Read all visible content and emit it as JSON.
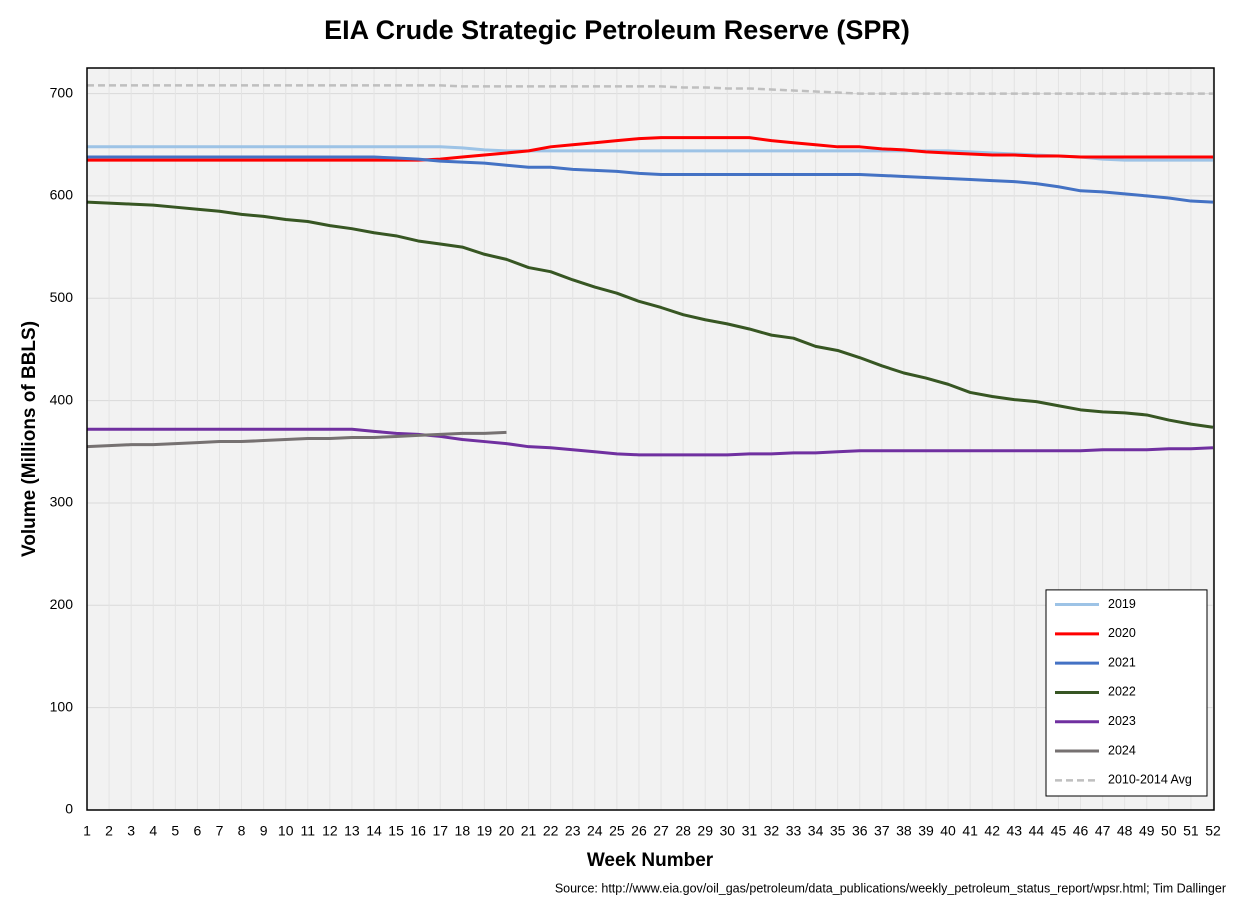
{
  "chart_data": {
    "type": "line",
    "title": "EIA Crude Strategic Petroleum Reserve (SPR)",
    "x_label": "Week Number",
    "y_label": "Volume (Millions of BBLS)",
    "source": "Source: http://www.eia.gov/oil_gas/petroleum/data_publications/weekly_petroleum_status_report/wpsr.html; Tim Dallinger",
    "x": [
      1,
      2,
      3,
      4,
      5,
      6,
      7,
      8,
      9,
      10,
      11,
      12,
      13,
      14,
      15,
      16,
      17,
      18,
      19,
      20,
      21,
      22,
      23,
      24,
      25,
      26,
      27,
      28,
      29,
      30,
      31,
      32,
      33,
      34,
      35,
      36,
      37,
      38,
      39,
      40,
      41,
      42,
      43,
      44,
      45,
      46,
      47,
      48,
      49,
      50,
      51,
      52
    ],
    "xlim": [
      1,
      52
    ],
    "xticks": [
      1,
      2,
      3,
      4,
      5,
      6,
      7,
      8,
      9,
      10,
      11,
      12,
      13,
      14,
      15,
      16,
      17,
      18,
      19,
      20,
      21,
      22,
      23,
      24,
      25,
      26,
      27,
      28,
      29,
      30,
      31,
      32,
      33,
      34,
      35,
      36,
      37,
      38,
      39,
      40,
      41,
      42,
      43,
      44,
      45,
      46,
      47,
      48,
      49,
      50,
      51,
      52
    ],
    "ylim": [
      0,
      725
    ],
    "yticks": [
      0,
      100,
      200,
      300,
      400,
      500,
      600,
      700
    ],
    "grid": true,
    "legend": "bottom-right",
    "series": [
      {
        "name": "2019",
        "color": "#9dc3e6",
        "values": [
          648,
          648,
          648,
          648,
          648,
          648,
          648,
          648,
          648,
          648,
          648,
          648,
          648,
          648,
          648,
          648,
          648,
          647,
          645,
          644,
          644,
          644,
          644,
          644,
          644,
          644,
          644,
          644,
          644,
          644,
          644,
          644,
          644,
          644,
          644,
          644,
          644,
          644,
          644,
          644,
          643,
          642,
          641,
          640,
          639,
          638,
          636,
          635,
          635,
          635,
          635,
          635
        ]
      },
      {
        "name": "2020",
        "color": "#ff0000",
        "values": [
          635,
          635,
          635,
          635,
          635,
          635,
          635,
          635,
          635,
          635,
          635,
          635,
          635,
          635,
          635,
          635,
          636,
          638,
          640,
          642,
          644,
          648,
          650,
          652,
          654,
          656,
          657,
          657,
          657,
          657,
          657,
          654,
          652,
          650,
          648,
          648,
          646,
          645,
          643,
          642,
          641,
          640,
          640,
          639,
          639,
          638,
          638,
          638,
          638,
          638,
          638,
          638
        ]
      },
      {
        "name": "2021",
        "color": "#4472c4",
        "values": [
          638,
          638,
          638,
          638,
          638,
          638,
          638,
          638,
          638,
          638,
          638,
          638,
          638,
          638,
          637,
          636,
          634,
          633,
          632,
          630,
          628,
          628,
          626,
          625,
          624,
          622,
          621,
          621,
          621,
          621,
          621,
          621,
          621,
          621,
          621,
          621,
          620,
          619,
          618,
          617,
          616,
          615,
          614,
          612,
          609,
          605,
          604,
          602,
          600,
          598,
          595,
          594
        ]
      },
      {
        "name": "2022",
        "color": "#375623",
        "values": [
          594,
          593,
          592,
          591,
          589,
          587,
          585,
          582,
          580,
          577,
          575,
          571,
          568,
          564,
          561,
          556,
          553,
          550,
          543,
          538,
          530,
          526,
          518,
          511,
          505,
          497,
          491,
          484,
          479,
          475,
          470,
          464,
          461,
          453,
          449,
          442,
          434,
          427,
          422,
          416,
          408,
          404,
          401,
          399,
          395,
          391,
          389,
          388,
          386,
          381,
          377,
          374
        ]
      },
      {
        "name": "2023",
        "color": "#7030a0",
        "values": [
          372,
          372,
          372,
          372,
          372,
          372,
          372,
          372,
          372,
          372,
          372,
          372,
          372,
          370,
          368,
          367,
          365,
          362,
          360,
          358,
          355,
          354,
          352,
          350,
          348,
          347,
          347,
          347,
          347,
          347,
          348,
          348,
          349,
          349,
          350,
          351,
          351,
          351,
          351,
          351,
          351,
          351,
          351,
          351,
          351,
          351,
          352,
          352,
          352,
          353,
          353,
          354
        ]
      },
      {
        "name": "2024",
        "color": "#767171",
        "values": [
          355,
          356,
          357,
          357,
          358,
          359,
          360,
          360,
          361,
          362,
          363,
          363,
          364,
          364,
          365,
          366,
          367,
          368,
          368,
          369,
          null,
          null,
          null,
          null,
          null,
          null,
          null,
          null,
          null,
          null,
          null,
          null,
          null,
          null,
          null,
          null,
          null,
          null,
          null,
          null,
          null,
          null,
          null,
          null,
          null,
          null,
          null,
          null,
          null,
          null,
          null,
          null
        ]
      },
      {
        "name": "2010-2014 Avg",
        "color": "#bfbfbf",
        "dashed": true,
        "values": [
          708,
          708,
          708,
          708,
          708,
          708,
          708,
          708,
          708,
          708,
          708,
          708,
          708,
          708,
          708,
          708,
          708,
          707,
          707,
          707,
          707,
          707,
          707,
          707,
          707,
          707,
          707,
          706,
          706,
          705,
          705,
          704,
          703,
          702,
          701,
          700,
          700,
          700,
          700,
          700,
          700,
          700,
          700,
          700,
          700,
          700,
          700,
          700,
          700,
          700,
          700,
          700
        ]
      }
    ]
  }
}
